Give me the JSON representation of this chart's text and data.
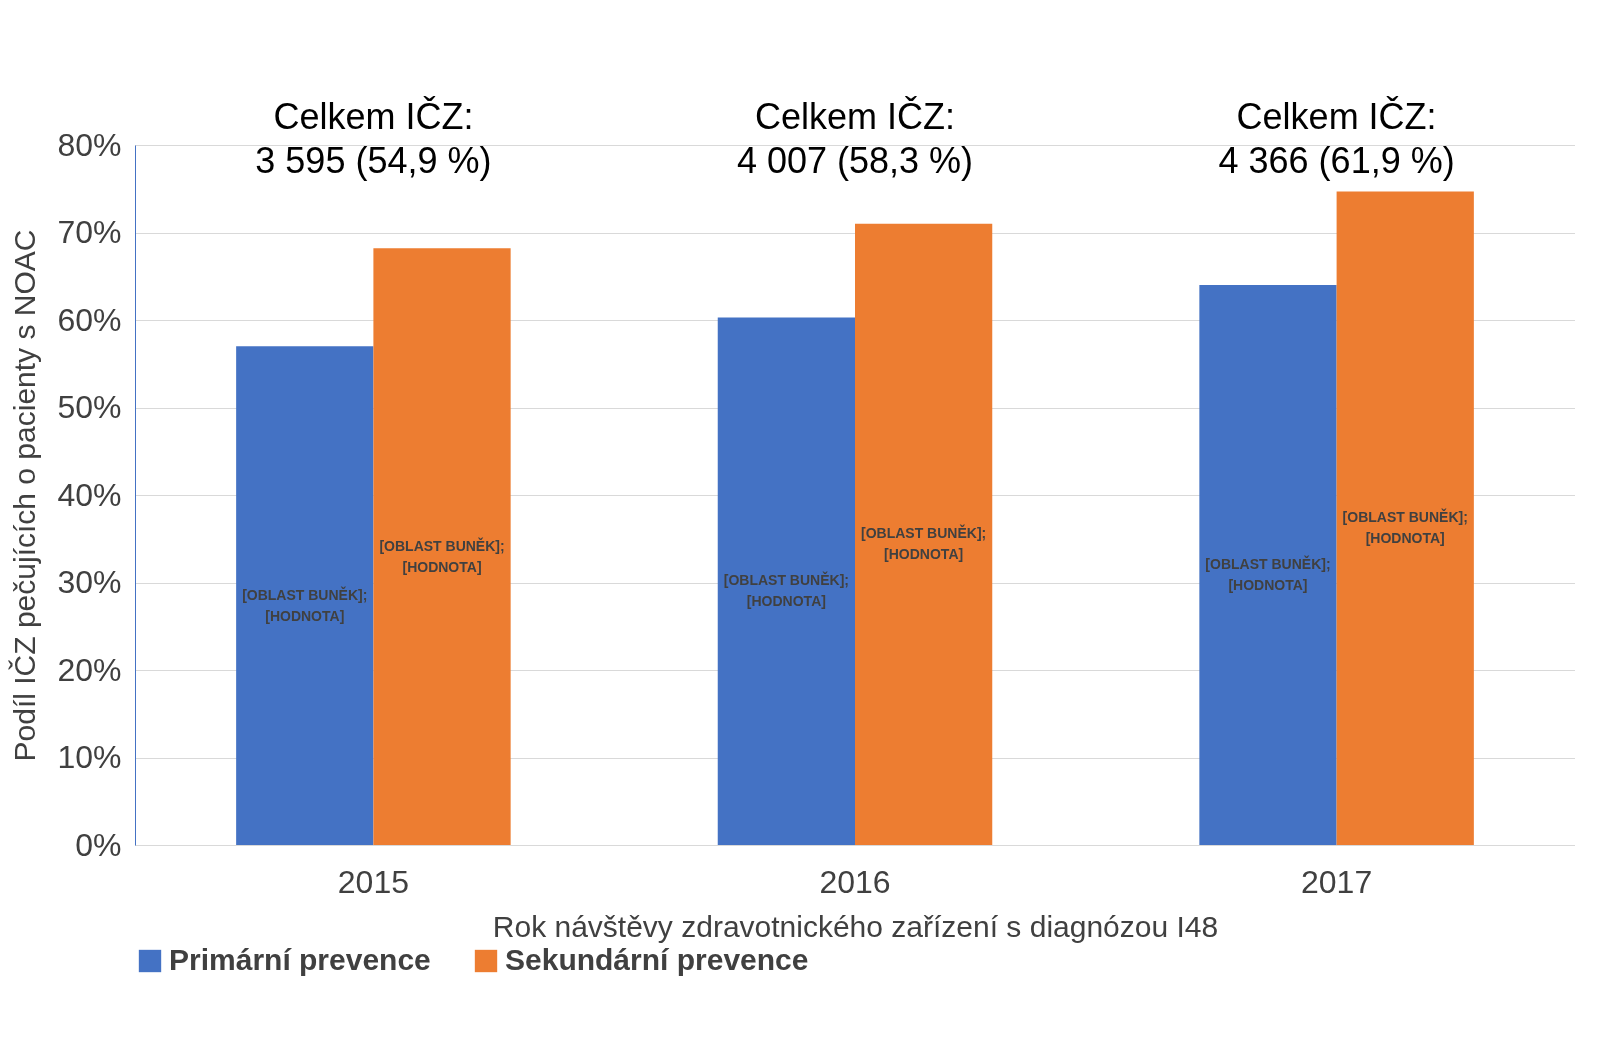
{
  "chart_data": {
    "type": "bar",
    "xlabel": "Rok návštěvy zdravotnického zařízení s diagnózou I48",
    "ylabel": "Podíl IČZ pečujících o pacienty s NOAC",
    "categories": [
      "2015",
      "2016",
      "2017"
    ],
    "series": [
      {
        "name": "Primární prevence",
        "color": "#4472c4",
        "values": [
          0.57,
          0.603,
          0.64
        ],
        "value_labels": [
          "[OBLAST BUNĚK]; [HODNOTA]",
          "[OBLAST BUNĚK]; [HODNOTA]",
          "[OBLAST BUNĚK]; [HODNOTA]"
        ]
      },
      {
        "name": "Sekundární prevence",
        "color": "#ed7d31",
        "values": [
          0.682,
          0.71,
          0.747
        ],
        "value_labels": [
          "[OBLAST BUNĚK]; [HODNOTA]",
          "[OBLAST BUNĚK]; [HODNOTA]",
          "[OBLAST BUNĚK]; [HODNOTA]"
        ]
      }
    ],
    "ylim": [
      0,
      0.8
    ],
    "yticks": [
      {
        "value": 0,
        "label": "0%"
      },
      {
        "value": 0.1,
        "label": "10%"
      },
      {
        "value": 0.2,
        "label": "20%"
      },
      {
        "value": 0.3,
        "label": "30%"
      },
      {
        "value": 0.4,
        "label": "40%"
      },
      {
        "value": 0.5,
        "label": "50%"
      },
      {
        "value": 0.6,
        "label": "60%"
      },
      {
        "value": 0.7,
        "label": "70%"
      },
      {
        "value": 0.8,
        "label": "80%"
      }
    ],
    "annotations": [
      "Celkem IČZ:\n3 595 (54,9 %)",
      "Celkem IČZ:\n4 007 (58,3 %)",
      "Celkem IČZ:\n4 366 (61,9 %)"
    ],
    "grid": "y",
    "legend": "bottom"
  }
}
